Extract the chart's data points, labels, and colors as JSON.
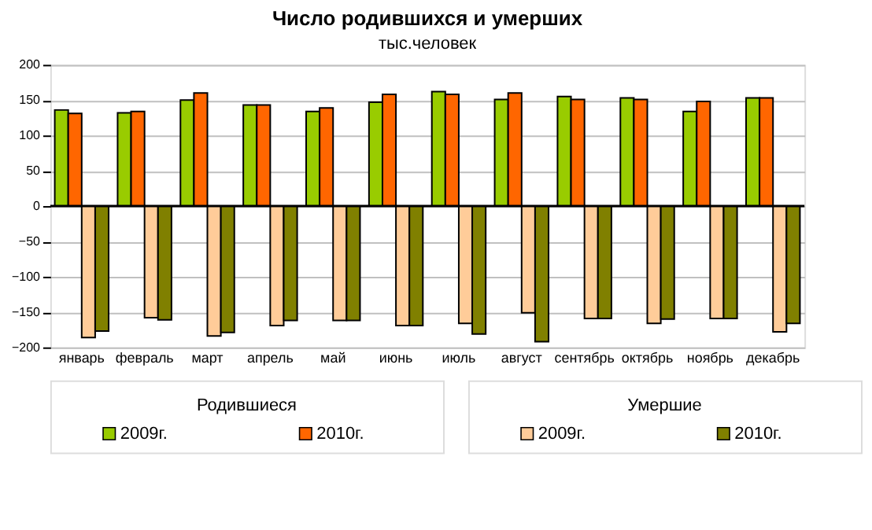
{
  "chart_data": {
    "type": "bar",
    "title": "Число родившихся и умерших",
    "subtitle": "тыс.человек",
    "categories": [
      "январь",
      "февраль",
      "март",
      "апрель",
      "май",
      "июнь",
      "июль",
      "август",
      "сентябрь",
      "октябрь",
      "ноябрь",
      "декабрь"
    ],
    "series": [
      {
        "name": "2009г.",
        "color": "#99cc00",
        "values": [
          136,
          132,
          150,
          143,
          134,
          147,
          162,
          151,
          155,
          153,
          134,
          153
        ]
      },
      {
        "name": "2010г.",
        "color": "#ff6600",
        "values": [
          131,
          134,
          160,
          143,
          139,
          158,
          158,
          160,
          151,
          151,
          148,
          153
        ]
      },
      {
        "name": "2009г.",
        "color": "#ffcc99",
        "values": [
          -186,
          -158,
          -184,
          -169,
          -162,
          -169,
          -166,
          -151,
          -159,
          -166,
          -159,
          -178
        ]
      },
      {
        "name": "2010г.",
        "color": "#808000",
        "values": [
          -177,
          -161,
          -179,
          -162,
          -162,
          -169,
          -181,
          -192,
          -159,
          -160,
          -159,
          -166
        ]
      }
    ],
    "annotations": [
      "Родившиеся",
      "Умершие"
    ],
    "ylim": [
      -200,
      200
    ],
    "yticks": [
      -200,
      -150,
      -100,
      -50,
      0,
      50,
      100,
      150,
      200
    ],
    "ref_lines": [
      {
        "axis": "y",
        "value": 0,
        "color": "#000000"
      }
    ],
    "grid": "y",
    "legend": "bottom"
  }
}
